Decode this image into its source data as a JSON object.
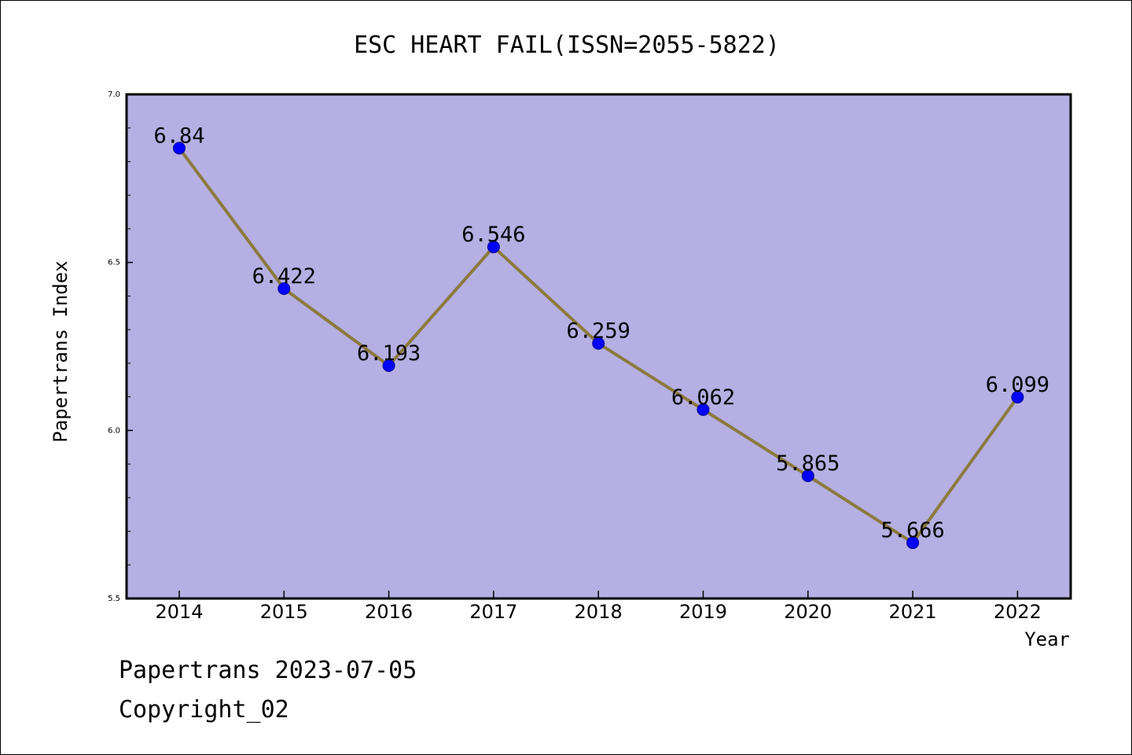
{
  "chart_data": {
    "type": "line",
    "title": "ESC HEART FAIL(ISSN=2055-5822)",
    "xlabel": "Year",
    "ylabel": "Papertrans Index",
    "categories": [
      "2014",
      "2015",
      "2016",
      "2017",
      "2018",
      "2019",
      "2020",
      "2021",
      "2022"
    ],
    "series": [
      {
        "values": [
          6.84,
          6.422,
          6.193,
          6.546,
          6.259,
          6.062,
          5.865,
          5.666,
          6.099
        ],
        "labels": [
          "6.84",
          "6.422",
          "6.193",
          "6.546",
          "6.259",
          "6.062",
          "5.865",
          "5.666",
          "6.099"
        ]
      }
    ],
    "ylim": [
      5.5,
      7.0
    ],
    "y_ticks": [
      "5.5",
      "6.0",
      "6.5",
      "7.0"
    ],
    "grid": false,
    "colors": {
      "plot_background": "#b5afe3",
      "line": "#8c7a3c",
      "marker": "#0000ff"
    }
  },
  "footer": {
    "date_text": "Papertrans 2023-07-05",
    "copyright_text": "Copyright_02"
  }
}
